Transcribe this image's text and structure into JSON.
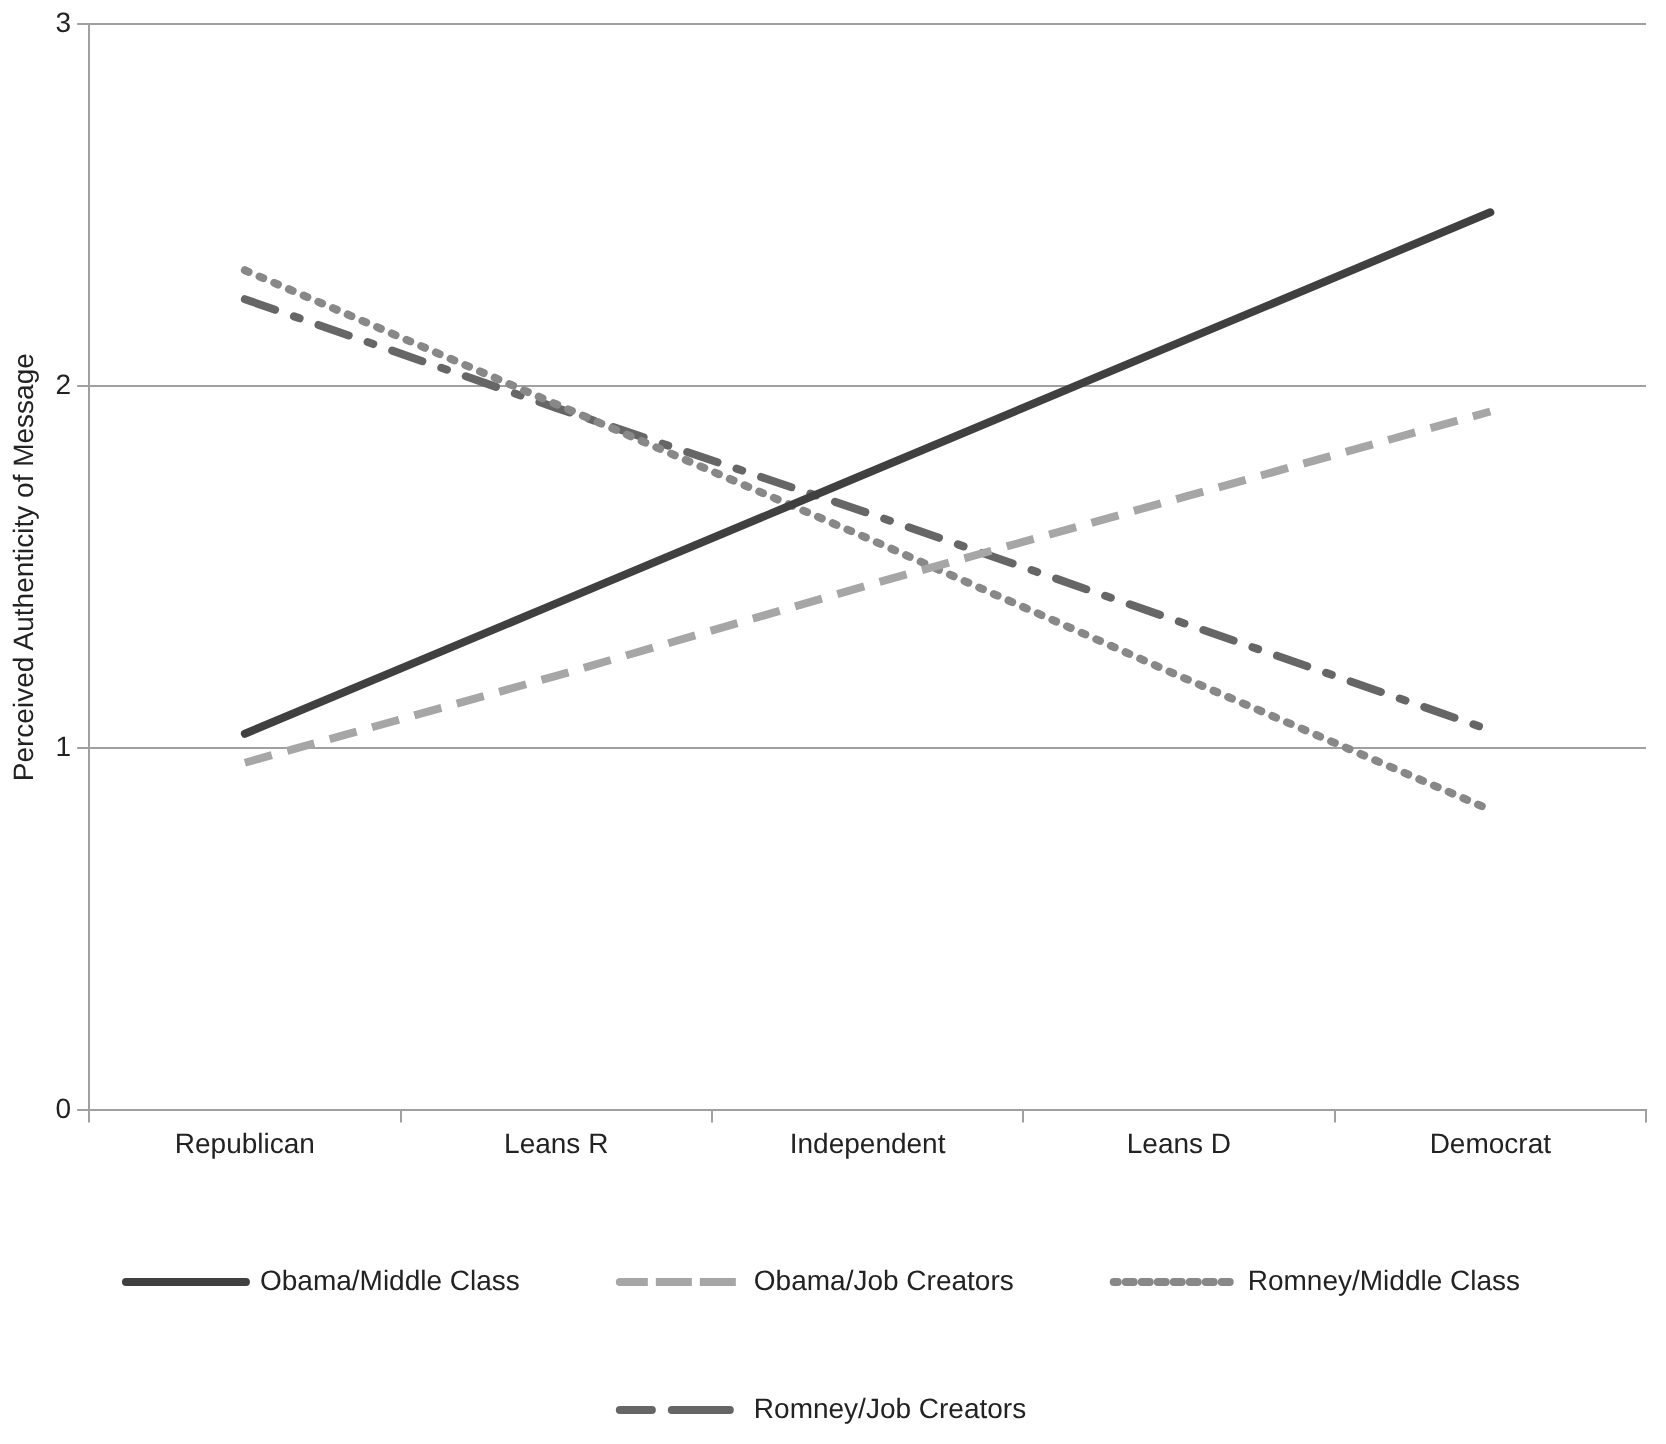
{
  "chart_data": {
    "type": "line",
    "ylabel": "Perceived Authenticity of Message",
    "categories": [
      "Republican",
      "Leans R",
      "Independent",
      "Leans D",
      "Democrat"
    ],
    "series": [
      {
        "name": "Obama/Middle Class",
        "color": "#404040",
        "line_style": "solid",
        "values": [
          1.04,
          1.4,
          1.76,
          2.12,
          2.48
        ]
      },
      {
        "name": "Obama/Job Creators",
        "color": "#a6a6a6",
        "line_style": "dashed",
        "values": [
          0.96,
          1.2,
          1.45,
          1.69,
          1.93
        ]
      },
      {
        "name": "Romney/Middle Class",
        "color": "#888888",
        "line_style": "dotted",
        "values": [
          2.32,
          1.95,
          1.58,
          1.2,
          0.83
        ]
      },
      {
        "name": "Romney/Job Creators",
        "color": "#666666",
        "line_style": "dashdot",
        "values": [
          2.24,
          1.94,
          1.65,
          1.35,
          1.05
        ]
      }
    ],
    "ylim": [
      0,
      3
    ],
    "yticks": [
      0,
      1,
      2,
      3
    ],
    "grid": "y",
    "legend": "bottom",
    "marker": "none"
  }
}
